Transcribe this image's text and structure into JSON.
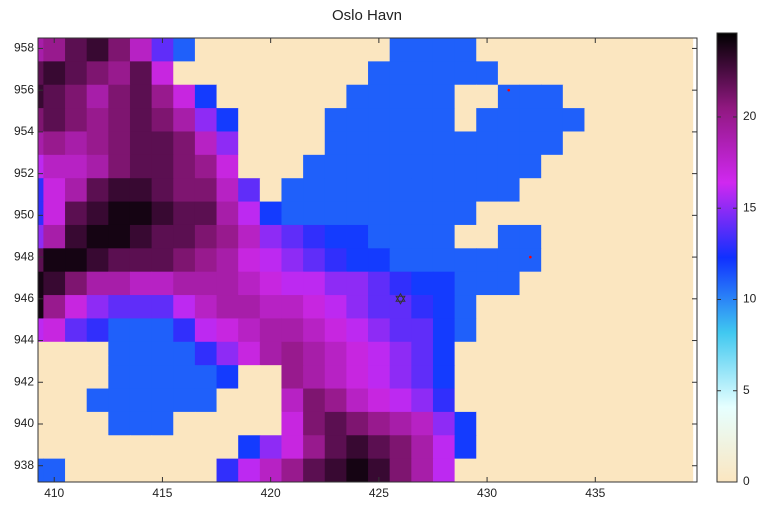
{
  "chart_data": {
    "type": "heatmap",
    "title": "Oslo Havn",
    "x": [
      409,
      410,
      411,
      412,
      413,
      414,
      415,
      416,
      417,
      418,
      419,
      420,
      421,
      422,
      423,
      424,
      425,
      426,
      427,
      428,
      429,
      430,
      431,
      432,
      433,
      434,
      435,
      436,
      437,
      438,
      439
    ],
    "y": [
      957.94,
      956.82,
      955.7,
      954.58,
      953.46,
      952.34,
      951.22,
      950.1,
      948.98,
      947.86,
      946.74,
      945.62,
      944.5,
      943.38,
      942.26,
      941.14,
      940.02,
      938.9,
      937.78
    ],
    "z": [
      [
        19,
        20,
        22,
        23,
        21,
        18,
        14,
        11,
        0,
        0,
        0,
        0,
        0,
        0,
        0,
        0,
        0,
        11,
        11,
        11,
        11,
        0,
        0,
        0,
        0,
        0,
        0,
        0,
        0,
        0,
        0
      ],
      [
        22,
        23,
        22,
        21,
        20,
        22,
        17,
        0,
        0,
        0,
        0,
        0,
        0,
        0,
        0,
        0,
        11,
        11,
        11,
        11,
        11,
        11,
        0,
        0,
        0,
        0,
        0,
        0,
        0,
        0,
        0
      ],
      [
        23,
        22,
        21,
        19,
        21,
        22,
        20,
        17,
        12,
        0,
        0,
        0,
        0,
        0,
        0,
        11,
        11,
        11,
        11,
        11,
        0,
        0,
        11,
        11,
        11,
        0,
        0,
        0,
        0,
        0,
        0
      ],
      [
        21,
        22,
        21,
        20,
        21,
        22,
        21,
        19,
        15,
        12,
        0,
        0,
        0,
        0,
        11,
        11,
        11,
        11,
        11,
        11,
        0,
        11,
        11,
        11,
        11,
        11,
        0,
        0,
        0,
        0,
        0
      ],
      [
        19,
        20,
        19,
        20,
        21,
        22,
        22,
        21,
        18,
        15,
        0,
        0,
        0,
        0,
        11,
        11,
        11,
        11,
        11,
        11,
        11,
        11,
        11,
        11,
        11,
        0,
        0,
        0,
        0,
        0,
        0
      ],
      [
        16,
        18,
        18,
        19,
        21,
        22,
        22,
        21,
        20,
        17,
        0,
        0,
        0,
        11,
        11,
        11,
        11,
        11,
        11,
        11,
        11,
        11,
        11,
        11,
        0,
        0,
        0,
        0,
        0,
        0,
        0
      ],
      [
        13,
        17,
        19,
        22,
        23,
        23,
        22,
        21,
        21,
        18,
        14,
        0,
        11,
        11,
        11,
        11,
        11,
        11,
        11,
        11,
        11,
        11,
        11,
        0,
        0,
        0,
        0,
        0,
        0,
        0,
        0
      ],
      [
        13,
        17,
        22,
        23,
        24,
        24,
        23,
        22,
        22,
        19,
        16,
        12,
        11,
        11,
        11,
        11,
        11,
        11,
        11,
        11,
        11,
        0,
        0,
        0,
        0,
        0,
        0,
        0,
        0,
        0,
        0
      ],
      [
        15,
        19,
        23,
        24,
        24,
        23,
        22,
        22,
        21,
        20,
        18,
        15,
        14,
        13,
        12,
        12,
        11,
        11,
        11,
        11,
        0,
        0,
        11,
        11,
        0,
        0,
        0,
        0,
        0,
        0,
        0
      ],
      [
        22,
        24,
        24,
        23,
        22,
        22,
        22,
        21,
        20,
        19,
        17,
        16,
        15,
        14,
        13,
        12,
        12,
        11,
        11,
        11,
        11,
        11,
        11,
        11,
        0,
        0,
        0,
        0,
        0,
        0,
        0
      ],
      [
        24,
        23,
        21,
        19,
        19,
        18,
        18,
        19,
        19,
        19,
        18,
        17,
        16,
        16,
        15,
        15,
        14,
        13,
        12,
        12,
        11,
        11,
        11,
        0,
        0,
        0,
        0,
        0,
        0,
        0,
        0
      ],
      [
        24,
        20,
        17,
        15,
        14,
        14,
        14,
        16,
        18,
        19,
        19,
        18,
        18,
        17,
        16,
        15,
        14,
        14,
        13,
        12,
        11,
        0,
        0,
        0,
        0,
        0,
        0,
        0,
        0,
        0,
        0
      ],
      [
        16,
        17,
        14,
        13,
        11,
        11,
        11,
        13,
        16,
        17,
        18,
        19,
        19,
        18,
        17,
        16,
        15,
        14,
        14,
        12,
        11,
        0,
        0,
        0,
        0,
        0,
        0,
        0,
        0,
        0,
        0
      ],
      [
        0,
        0,
        0,
        0,
        11,
        11,
        11,
        11,
        13,
        15,
        17,
        19,
        20,
        19,
        18,
        17,
        16,
        15,
        14,
        12,
        0,
        0,
        0,
        0,
        0,
        0,
        0,
        0,
        0,
        0,
        0
      ],
      [
        0,
        0,
        0,
        0,
        11,
        11,
        11,
        11,
        11,
        12,
        0,
        0,
        20,
        19,
        18,
        17,
        16,
        15,
        14,
        12,
        0,
        0,
        0,
        0,
        0,
        0,
        0,
        0,
        0,
        0,
        0
      ],
      [
        0,
        0,
        0,
        11,
        11,
        11,
        11,
        11,
        11,
        0,
        0,
        0,
        18,
        21,
        20,
        18,
        17,
        16,
        15,
        13,
        0,
        0,
        0,
        0,
        0,
        0,
        0,
        0,
        0,
        0,
        0
      ],
      [
        0,
        0,
        0,
        0,
        11,
        11,
        11,
        0,
        0,
        0,
        0,
        0,
        17,
        21,
        22,
        21,
        20,
        19,
        18,
        15,
        12,
        0,
        0,
        0,
        0,
        0,
        0,
        0,
        0,
        0,
        0
      ],
      [
        0,
        0,
        0,
        0,
        0,
        0,
        0,
        0,
        0,
        0,
        12,
        15,
        17,
        20,
        22,
        23,
        22,
        21,
        19,
        16,
        12,
        0,
        0,
        0,
        0,
        0,
        0,
        0,
        0,
        0,
        0
      ],
      [
        11,
        11,
        0,
        0,
        0,
        0,
        0,
        0,
        0,
        13,
        16,
        18,
        20,
        22,
        23,
        24,
        23,
        21,
        19,
        16,
        0,
        0,
        0,
        0,
        0,
        0,
        0,
        0,
        0,
        0,
        0
      ]
    ],
    "xlim": [
      409.25,
      439.7
    ],
    "xticks": [
      410,
      415,
      420,
      425,
      430,
      435
    ],
    "ylim": [
      937.22,
      958.5
    ],
    "yticks": [
      938,
      940,
      942,
      944,
      946,
      948,
      950,
      952,
      954,
      956,
      958
    ],
    "clim": [
      0,
      24.6
    ],
    "cticks": [
      0,
      5,
      10,
      15,
      20
    ],
    "colormap": [
      "#fbe6c0",
      "#e6ffff",
      "#40c8f0",
      "#1030ff",
      "#d028f0",
      "#901880",
      "#000000"
    ],
    "markers": [
      {
        "x": 426,
        "y": 946,
        "symbol": "star",
        "color": "#333333"
      },
      {
        "x": 431,
        "y": 956,
        "symbol": "dot",
        "color": "#ff0000"
      },
      {
        "x": 432,
        "y": 948,
        "symbol": "dot",
        "color": "#ff0000"
      }
    ]
  }
}
